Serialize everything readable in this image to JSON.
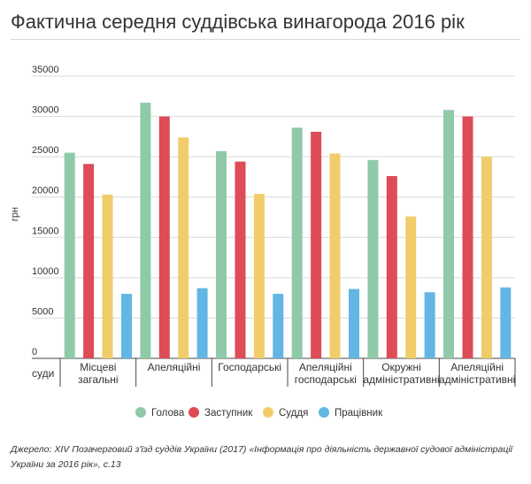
{
  "title": "Фактична середня суддівська винагорода 2016 рік",
  "source": "Джерело: XIV Позачерговий з'їзд суддів України (2017) «Інформація про діяльність державної судової адміністрації України за 2016 рік», с.13",
  "chart_data": {
    "type": "bar",
    "ylabel": "грн",
    "xlabel": "суди",
    "ylim": [
      0,
      35000
    ],
    "yticks": [
      0,
      5000,
      10000,
      15000,
      20000,
      25000,
      30000,
      35000
    ],
    "grid": true,
    "legend_position": "bottom",
    "categories": [
      [
        "Місцеві",
        "загальні"
      ],
      [
        "Апеляційні"
      ],
      [
        "Господарські"
      ],
      [
        "Апеляційні",
        "господарські"
      ],
      [
        "Окружні",
        "адміністративні"
      ],
      [
        "Апеляційні",
        "адміністративні"
      ]
    ],
    "series": [
      {
        "name": "Голова",
        "color": "#8fcaa8",
        "values": [
          25500,
          31700,
          25700,
          28600,
          24600,
          30800
        ]
      },
      {
        "name": "Заступник",
        "color": "#dd4c57",
        "values": [
          24100,
          30000,
          24400,
          28100,
          22600,
          30000
        ]
      },
      {
        "name": "Суддя",
        "color": "#f0cd6a",
        "values": [
          20300,
          27400,
          20400,
          25400,
          17600,
          25000
        ]
      },
      {
        "name": "Працівник",
        "color": "#62b6e3",
        "values": [
          8000,
          8700,
          8000,
          8600,
          8200,
          8800
        ]
      }
    ]
  }
}
